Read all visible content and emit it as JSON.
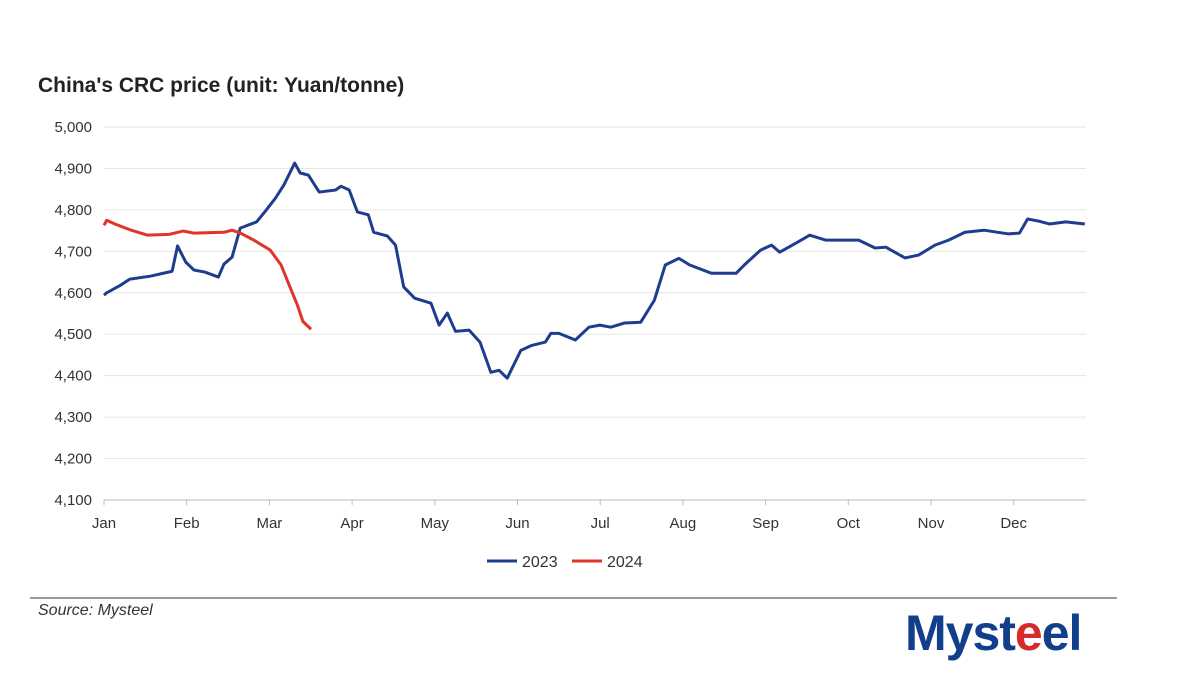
{
  "chart_data": {
    "type": "line",
    "title": "China's CRC price (unit: Yuan/tonne)",
    "xlabel": "",
    "ylabel": "",
    "ylim": [
      4100,
      5000
    ],
    "yticks": [
      "4,100",
      "4,200",
      "4,300",
      "4,400",
      "4,500",
      "4,600",
      "4,700",
      "4,800",
      "4,900",
      "5,000"
    ],
    "ytick_values": [
      4100,
      4200,
      4300,
      4400,
      4500,
      4600,
      4700,
      4800,
      4900,
      5000
    ],
    "x_unit": "day of year",
    "xticks": [
      "Jan",
      "Feb",
      "Mar",
      "Apr",
      "May",
      "Jun",
      "Jul",
      "Aug",
      "Sep",
      "Oct",
      "Nov",
      "Dec"
    ],
    "xlim": [
      0,
      361
    ],
    "grid": true,
    "legend": "bottom-center",
    "series": [
      {
        "name": "2023",
        "color": "#1f3d8f",
        "points": [
          [
            0,
            4594
          ],
          [
            1,
            4600
          ],
          [
            6,
            4618
          ],
          [
            9.5,
            4633
          ],
          [
            17,
            4640
          ],
          [
            25,
            4652
          ],
          [
            27,
            4713
          ],
          [
            30,
            4674
          ],
          [
            33,
            4655
          ],
          [
            37,
            4650
          ],
          [
            42,
            4638
          ],
          [
            44,
            4669
          ],
          [
            47,
            4686
          ],
          [
            50,
            4756
          ],
          [
            56,
            4771
          ],
          [
            59,
            4795
          ],
          [
            63,
            4829
          ],
          [
            66,
            4860
          ],
          [
            70,
            4913
          ],
          [
            72,
            4889
          ],
          [
            75,
            4884
          ],
          [
            79,
            4843
          ],
          [
            85,
            4848
          ],
          [
            87,
            4857
          ],
          [
            90,
            4848
          ],
          [
            93,
            4795
          ],
          [
            97,
            4788
          ],
          [
            99,
            4746
          ],
          [
            104,
            4737
          ],
          [
            107,
            4715
          ],
          [
            110,
            4614
          ],
          [
            114,
            4587
          ],
          [
            120,
            4575
          ],
          [
            123,
            4522
          ],
          [
            126,
            4551
          ],
          [
            129,
            4507
          ],
          [
            134,
            4510
          ],
          [
            138,
            4481
          ],
          [
            142,
            4408
          ],
          [
            145,
            4413
          ],
          [
            148,
            4394
          ],
          [
            153,
            4461
          ],
          [
            157,
            4473
          ],
          [
            162,
            4481
          ],
          [
            164,
            4502
          ],
          [
            167,
            4502
          ],
          [
            173,
            4486
          ],
          [
            178,
            4517
          ],
          [
            182,
            4522
          ],
          [
            186,
            4517
          ],
          [
            191,
            4527
          ],
          [
            197,
            4529
          ],
          [
            202,
            4582
          ],
          [
            206,
            4667
          ],
          [
            211,
            4683
          ],
          [
            215,
            4667
          ],
          [
            223,
            4647
          ],
          [
            232,
            4647
          ],
          [
            235,
            4667
          ],
          [
            241,
            4703
          ],
          [
            245,
            4715
          ],
          [
            248,
            4698
          ],
          [
            254,
            4720
          ],
          [
            259,
            4739
          ],
          [
            265,
            4727
          ],
          [
            277,
            4727
          ],
          [
            283,
            4708
          ],
          [
            287,
            4710
          ],
          [
            294,
            4684
          ],
          [
            299,
            4691
          ],
          [
            305,
            4715
          ],
          [
            310,
            4727
          ],
          [
            316,
            4746
          ],
          [
            323,
            4751
          ],
          [
            332,
            4742
          ],
          [
            336,
            4744
          ],
          [
            339,
            4778
          ],
          [
            343,
            4773
          ],
          [
            347,
            4766
          ],
          [
            353,
            4771
          ],
          [
            360,
            4766
          ]
        ]
      },
      {
        "name": "2024",
        "color": "#e0342b",
        "points": [
          [
            0,
            4763
          ],
          [
            1,
            4775
          ],
          [
            4,
            4766
          ],
          [
            10,
            4751
          ],
          [
            16,
            4739
          ],
          [
            24,
            4741
          ],
          [
            29,
            4749
          ],
          [
            33,
            4744
          ],
          [
            44,
            4746
          ],
          [
            47,
            4751
          ],
          [
            50,
            4744
          ],
          [
            55,
            4727
          ],
          [
            61,
            4703
          ],
          [
            65,
            4667
          ],
          [
            68,
            4618
          ],
          [
            71,
            4570
          ],
          [
            73,
            4531
          ],
          [
            76,
            4512
          ]
        ]
      }
    ]
  },
  "source": "Source: Mysteel",
  "logo_text": "Mysteel"
}
